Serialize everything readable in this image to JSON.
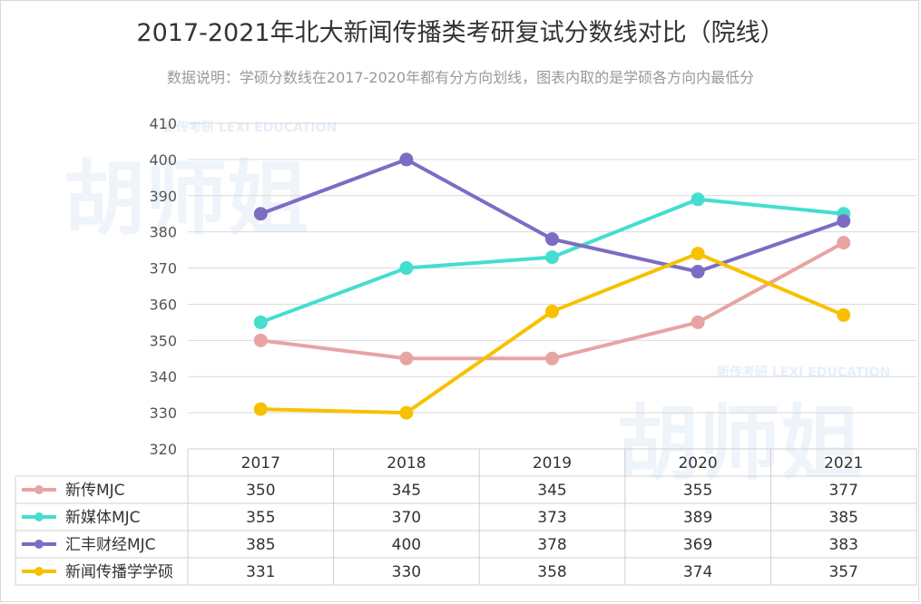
{
  "title": "2017-2021年北大新闻传播类考研复试分数线对比（院线）",
  "subtitle": "数据说明：学硕分数线在2017-2020年都有分方向划线，图表内取的是学硕各方向内最低分",
  "watermark": {
    "text": "胡师姐",
    "sub": "新传考研 LEXI EDUCATION"
  },
  "chart_data": {
    "type": "line",
    "title": "2017-2021年北大新闻传播类考研复试分数线对比（院线）",
    "categories": [
      "2017",
      "2018",
      "2019",
      "2020",
      "2021"
    ],
    "ylim": [
      320,
      410
    ],
    "yticks": [
      320,
      330,
      340,
      350,
      360,
      370,
      380,
      390,
      400,
      410
    ],
    "grid": true,
    "legend": "bottom-table",
    "series": [
      {
        "name": "新传MJC",
        "color": "#e8a3a3",
        "values": [
          350,
          345,
          345,
          355,
          377
        ]
      },
      {
        "name": "新媒体MJC",
        "color": "#45ddd0",
        "values": [
          355,
          370,
          373,
          389,
          385
        ]
      },
      {
        "name": "汇丰财经MJC",
        "color": "#7d6cc4",
        "values": [
          385,
          400,
          378,
          369,
          383
        ]
      },
      {
        "name": "新闻传播学学硕",
        "color": "#f7c100",
        "values": [
          331,
          330,
          358,
          374,
          357
        ]
      }
    ]
  }
}
